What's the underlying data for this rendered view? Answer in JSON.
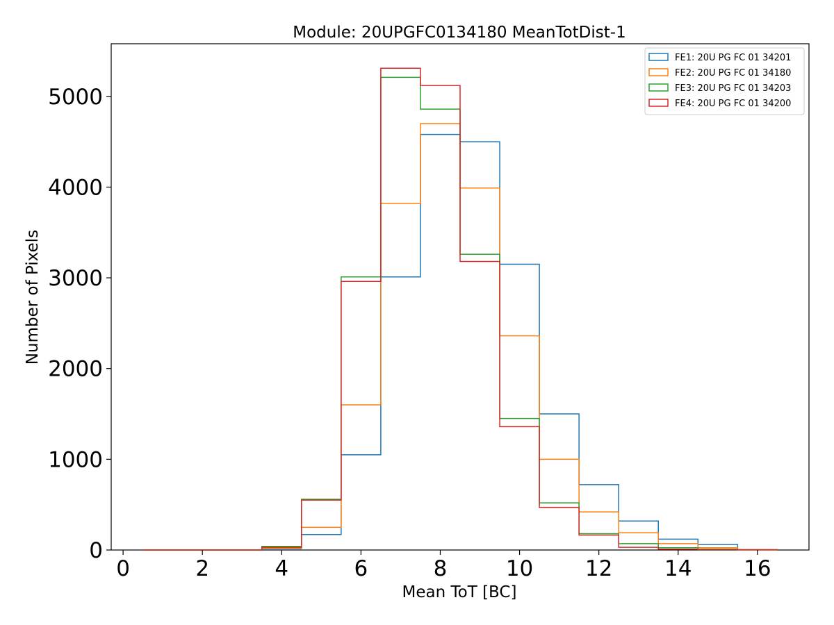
{
  "chart_data": {
    "type": "histogram",
    "title": "Module: 20UPGFC0134180 MeanTotDist-1",
    "xlabel": "Mean ToT [BC]",
    "ylabel": "Number of Pixels",
    "xlim": [
      -0.3,
      17.3
    ],
    "ylim": [
      0,
      5580
    ],
    "xticks": [
      0,
      2,
      4,
      6,
      8,
      10,
      12,
      14,
      16
    ],
    "yticks": [
      0,
      1000,
      2000,
      3000,
      4000,
      5000
    ],
    "legend_position": "top-right",
    "bin_edges": [
      0.5,
      1.5,
      2.5,
      3.5,
      4.5,
      5.5,
      6.5,
      7.5,
      8.5,
      9.5,
      10.5,
      11.5,
      12.5,
      13.5,
      14.5,
      15.5,
      16.5
    ],
    "series": [
      {
        "name": "FE1: 20U PG FC 01 34201",
        "color": "#1f77b4",
        "values": [
          0,
          0,
          0,
          15,
          170,
          1050,
          3010,
          4580,
          4500,
          3150,
          1500,
          720,
          320,
          120,
          60,
          5
        ]
      },
      {
        "name": "FE2: 20U PG FC 01 34180",
        "color": "#ff7f0e",
        "values": [
          0,
          0,
          0,
          20,
          250,
          1600,
          3820,
          4700,
          3990,
          2360,
          1000,
          420,
          190,
          70,
          25,
          5
        ]
      },
      {
        "name": "FE3: 20U PG FC 01 34203",
        "color": "#2ca02c",
        "values": [
          0,
          0,
          0,
          40,
          560,
          3010,
          5210,
          4860,
          3260,
          1450,
          520,
          180,
          70,
          25,
          10,
          2
        ]
      },
      {
        "name": "FE4: 20U PG FC 01 34200",
        "color": "#d62728",
        "values": [
          0,
          0,
          0,
          30,
          550,
          2960,
          5310,
          5120,
          3180,
          1360,
          470,
          165,
          30,
          10,
          5,
          1
        ]
      }
    ]
  }
}
